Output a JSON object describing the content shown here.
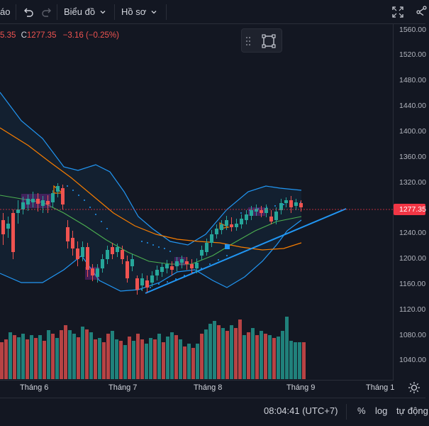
{
  "toolbar": {
    "partial_label": "áo",
    "chart_type_label": "Biểu đồ",
    "profile_label": "Hồ sơ",
    "icons": [
      "undo-icon",
      "redo-icon",
      "chevron-down-icon",
      "fullscreen-icon",
      "share-icon"
    ]
  },
  "legend": {
    "prev_value": "5.35",
    "close_label": "C",
    "close_value": "1277.35",
    "change": "−3.16 (−0.25%)"
  },
  "price_axis": {
    "labels": [
      "1560.00",
      "1520.00",
      "1480.00",
      "1440.00",
      "1400.00",
      "1360.00",
      "1320.00",
      "1240.00",
      "1200.00",
      "1160.00",
      "1120.00",
      "1080.00",
      "1040.00"
    ],
    "current_price": "1277.35",
    "current_color": "#f23645"
  },
  "time_axis": {
    "labels": [
      "Tháng 6",
      "Tháng 7",
      "Tháng 8",
      "Tháng 9",
      "Tháng 1"
    ]
  },
  "status": {
    "time": "08:04:41 (UTC+7)",
    "percent_label": "%",
    "log_label": "log",
    "auto_label": "tự động"
  },
  "chart_data": {
    "type": "candlestick",
    "up_color": "#26a69a",
    "down_color": "#ef5350",
    "ylim": [
      1020,
      1580
    ],
    "indicators": [
      "Bollinger Bands",
      "Parabolic SAR",
      "Moving Average",
      "Volume"
    ]
  }
}
